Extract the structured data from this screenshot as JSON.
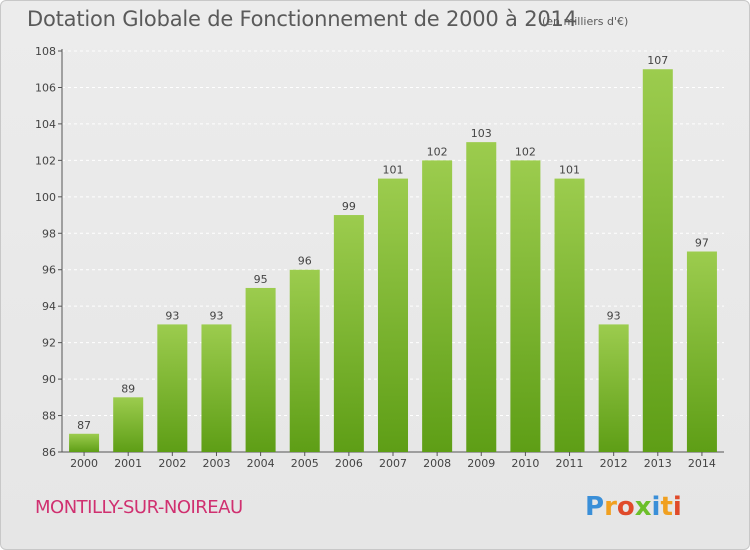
{
  "header": {
    "title": "Dotation Globale de Fonctionnement de 2000 à 2014",
    "subtitle": "(en milliers d'€)"
  },
  "footer": {
    "commune": "MONTILLY-SUR-NOIREAU",
    "logo_text": "Proxiti"
  },
  "colors": {
    "bar_top": "#9ccc4e",
    "bar_bottom": "#5e9e16",
    "commune_text": "#d03070",
    "grid": "#ffffff"
  },
  "chart_data": {
    "type": "bar",
    "title": "Dotation Globale de Fonctionnement de 2000 à 2014",
    "subtitle": "(en milliers d'€)",
    "xlabel": "",
    "ylabel": "",
    "categories": [
      "2000",
      "2001",
      "2002",
      "2003",
      "2004",
      "2005",
      "2006",
      "2007",
      "2008",
      "2009",
      "2010",
      "2011",
      "2012",
      "2013",
      "2014"
    ],
    "values": [
      87,
      89,
      93,
      93,
      95,
      96,
      99,
      101,
      102,
      103,
      102,
      101,
      93,
      107,
      97
    ],
    "ylim": [
      86,
      108
    ],
    "yticks": [
      86,
      88,
      90,
      92,
      94,
      96,
      98,
      100,
      102,
      104,
      106,
      108
    ],
    "grid": true,
    "legend": "none"
  }
}
